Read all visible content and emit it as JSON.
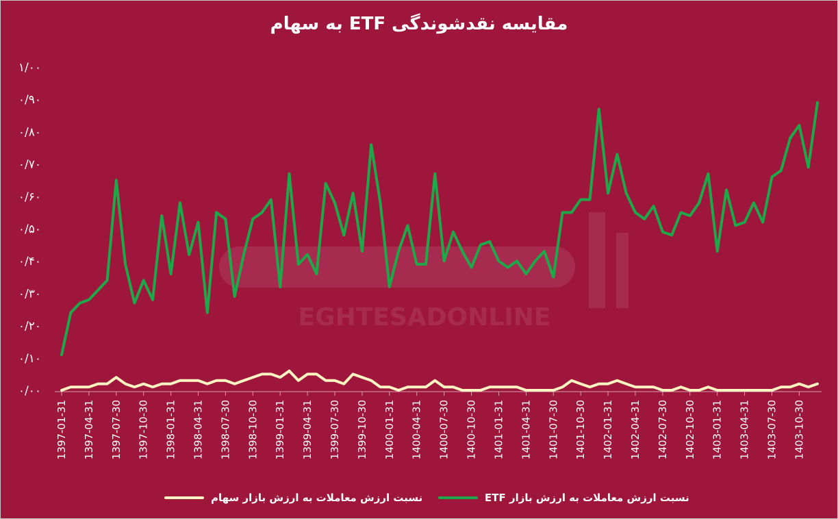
{
  "colors": {
    "background": "#9e163c",
    "etf": "#1fa84a",
    "stock": "#fff4c2",
    "text": "#ffffff"
  },
  "watermark": "EGHTESADONLINE",
  "chart_data": {
    "type": "line",
    "title": "مقایسه نقدشوندگی ETF به سهام",
    "xlabel": "",
    "ylabel": "",
    "ylim": [
      0,
      1
    ],
    "yticks": [
      0.0,
      0.1,
      0.2,
      0.3,
      0.4,
      0.5,
      0.6,
      0.7,
      0.8,
      0.9,
      1.0
    ],
    "ytick_labels": [
      "۰/۰۰",
      "۰/۱۰",
      "۰/۲۰",
      "۰/۳۰",
      "۰/۴۰",
      "۰/۵۰",
      "۰/۶۰",
      "۰/۷۰",
      "۰/۸۰",
      "۰/۹۰",
      "۱/۰۰"
    ],
    "xtick_labels": [
      "1397-01-31",
      "1397-04-31",
      "1397-07-30",
      "1397-10-30",
      "1398-01-31",
      "1398-04-31",
      "1398-07-30",
      "1398-10-30",
      "1399-01-31",
      "1399-04-31",
      "1399-07-30",
      "1399-10-30",
      "1400-01-31",
      "1400-04-31",
      "1400-07-30",
      "1400-10-30",
      "1401-01-31",
      "1401-04-31",
      "1401-07-30",
      "1401-10-30",
      "1402-01-31",
      "1402-04-31",
      "1402-07-30",
      "1402-10-30",
      "1403-01-31",
      "1403-04-31",
      "1403-07-30",
      "1403-10-30"
    ],
    "grid": false,
    "legend_position": "bottom",
    "series": [
      {
        "name": "نسبت ارزش معاملات به ارزش بازار ETF",
        "color": "#1fa84a",
        "values": [
          0.11,
          0.24,
          0.27,
          0.28,
          0.31,
          0.34,
          0.65,
          0.39,
          0.27,
          0.34,
          0.28,
          0.54,
          0.36,
          0.58,
          0.42,
          0.52,
          0.24,
          0.55,
          0.53,
          0.29,
          0.42,
          0.53,
          0.55,
          0.59,
          0.32,
          0.67,
          0.39,
          0.42,
          0.36,
          0.64,
          0.58,
          0.48,
          0.61,
          0.43,
          0.76,
          0.58,
          0.32,
          0.43,
          0.51,
          0.39,
          0.39,
          0.67,
          0.4,
          0.49,
          0.43,
          0.38,
          0.45,
          0.46,
          0.4,
          0.38,
          0.4,
          0.36,
          0.4,
          0.43,
          0.35,
          0.55,
          0.55,
          0.59,
          0.59,
          0.87,
          0.61,
          0.73,
          0.61,
          0.55,
          0.53,
          0.57,
          0.49,
          0.48,
          0.55,
          0.54,
          0.58,
          0.67,
          0.43,
          0.62,
          0.51,
          0.52,
          0.58,
          0.52,
          0.66,
          0.68,
          0.78,
          0.82,
          0.69,
          0.89
        ]
      },
      {
        "name": "نسبت ارزش معاملات به ارزش بازار سهام",
        "color": "#fff4c2",
        "values": [
          0.0,
          0.01,
          0.01,
          0.01,
          0.02,
          0.02,
          0.04,
          0.02,
          0.01,
          0.02,
          0.01,
          0.02,
          0.02,
          0.03,
          0.03,
          0.03,
          0.02,
          0.03,
          0.03,
          0.02,
          0.03,
          0.04,
          0.05,
          0.05,
          0.04,
          0.06,
          0.03,
          0.05,
          0.05,
          0.03,
          0.03,
          0.02,
          0.05,
          0.04,
          0.03,
          0.01,
          0.01,
          0.0,
          0.01,
          0.01,
          0.01,
          0.03,
          0.01,
          0.01,
          0.0,
          0.0,
          0.0,
          0.01,
          0.01,
          0.01,
          0.01,
          0.0,
          0.0,
          0.0,
          0.0,
          0.01,
          0.03,
          0.02,
          0.01,
          0.02,
          0.02,
          0.03,
          0.02,
          0.01,
          0.01,
          0.01,
          0.0,
          0.0,
          0.01,
          0.0,
          0.0,
          0.01,
          0.0,
          0.0,
          0.0,
          0.0,
          0.0,
          0.0,
          0.0,
          0.01,
          0.01,
          0.02,
          0.01,
          0.02
        ]
      }
    ]
  }
}
